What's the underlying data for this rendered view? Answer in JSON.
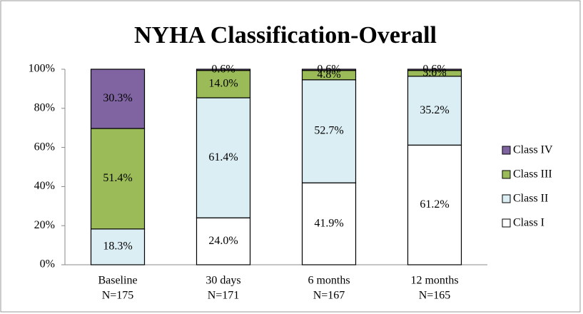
{
  "chart_data": {
    "type": "stacked_bar",
    "title": "NYHA Classification-Overall",
    "categories": [
      [
        "Baseline",
        "N=175"
      ],
      [
        "30 days",
        "N=171"
      ],
      [
        "6 months",
        "N=167"
      ],
      [
        "12 months",
        "N=165"
      ]
    ],
    "series": [
      {
        "name": "Class I",
        "color": "#ffffff",
        "values": [
          0,
          24.0,
          41.9,
          61.2
        ],
        "value_labels": [
          null,
          "24.0%",
          "41.9%",
          "61.2%"
        ]
      },
      {
        "name": "Class II",
        "color": "#dbeef4",
        "values": [
          18.3,
          61.4,
          52.7,
          35.2
        ],
        "value_labels": [
          "18.3%",
          "61.4%",
          "52.7%",
          "35.2%"
        ]
      },
      {
        "name": "Class III",
        "color": "#9bbb59",
        "values": [
          51.4,
          14.0,
          4.8,
          3.0
        ],
        "value_labels": [
          "51.4%",
          "14.0%",
          "4.8%",
          "3.0%"
        ]
      },
      {
        "name": "Class IV",
        "color": "#8064a2",
        "values": [
          30.3,
          0.6,
          0.6,
          0.6
        ],
        "value_labels": [
          "30.3%",
          "0.6%",
          "0.6%",
          "0.6%"
        ]
      }
    ],
    "ylim": [
      0,
      100
    ],
    "yticks": [
      {
        "value": 0,
        "label": "0%"
      },
      {
        "value": 20,
        "label": "20%"
      },
      {
        "value": 40,
        "label": "40%"
      },
      {
        "value": 60,
        "label": "60%"
      },
      {
        "value": 80,
        "label": "80%"
      },
      {
        "value": 100,
        "label": "100%"
      }
    ],
    "legend": "right"
  }
}
